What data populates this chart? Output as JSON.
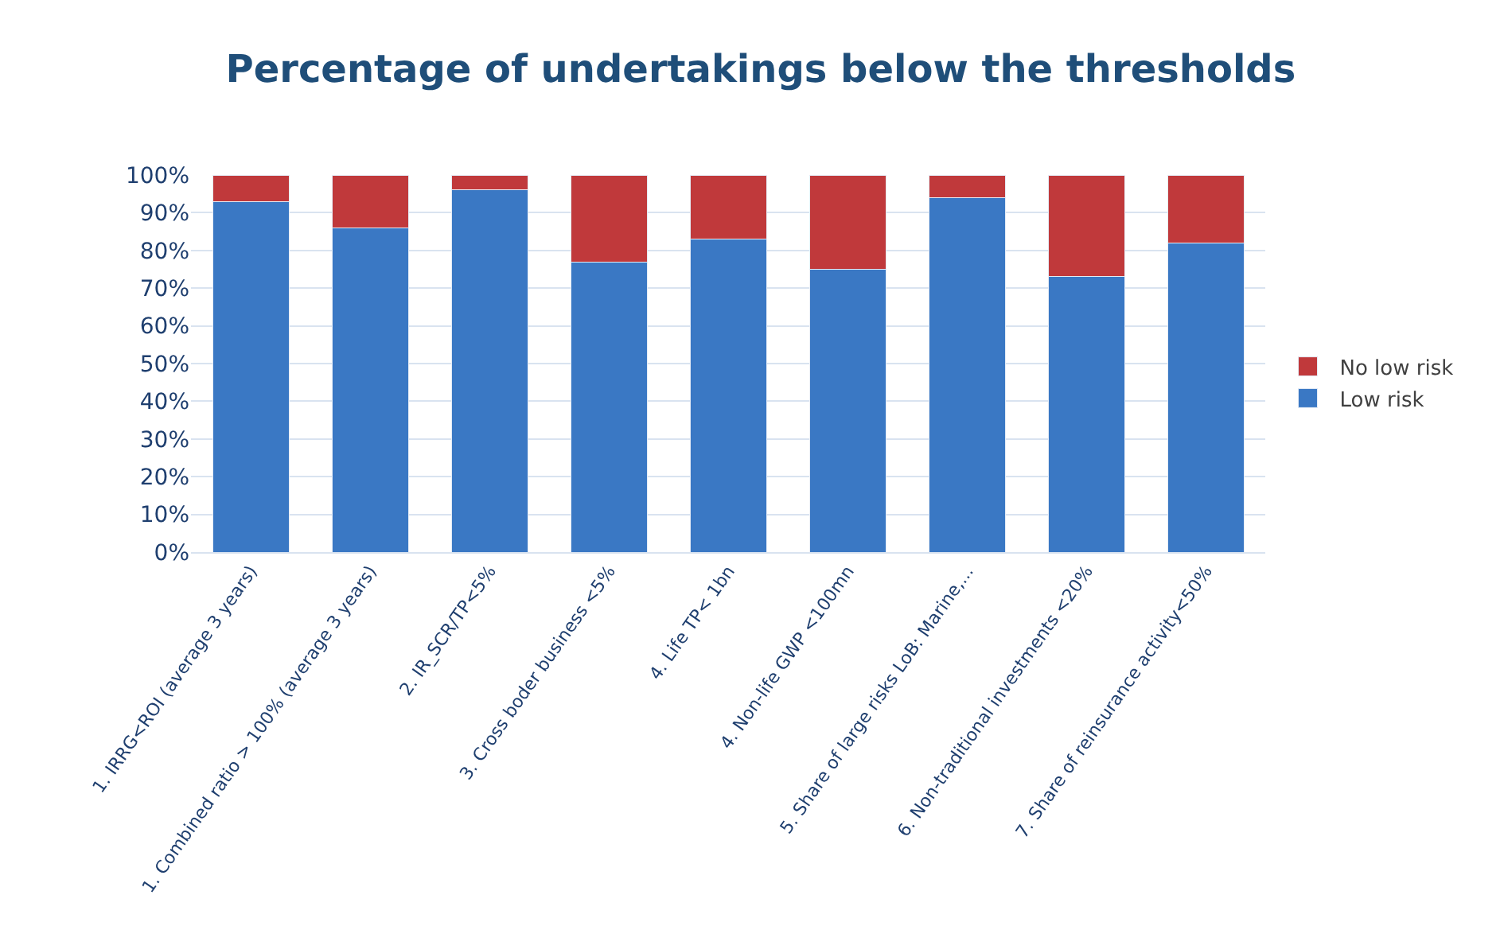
{
  "chart_data": {
    "type": "bar",
    "title": "Percentage of undertakings below the thresholds",
    "categories": [
      "1. IRRG<ROI (average 3 years)",
      "1. Combined ratio > 100% (average 3 years)",
      "2. IR_SCR/TP<5%",
      "3. Cross boder business <5%",
      "4. Life TP< 1bn",
      "4. Non-life GWP <100mn",
      "5. Share of large risks LoB: Marine,...",
      "6. Non-traditional investments <20%",
      "7. Share of reinsurance activity<50%"
    ],
    "series": [
      {
        "name": "Low risk",
        "color": "#3a78c4",
        "values": [
          93,
          86,
          96,
          77,
          83,
          75,
          94,
          73,
          82
        ]
      },
      {
        "name": "No low risk",
        "color": "#c0393b",
        "values": [
          7,
          14,
          4,
          23,
          17,
          25,
          6,
          27,
          18
        ]
      }
    ],
    "stacked": true,
    "ylim": [
      0,
      100
    ],
    "yticks": [
      {
        "value": 0,
        "label": "0%"
      },
      {
        "value": 10,
        "label": "10%"
      },
      {
        "value": 20,
        "label": "20%"
      },
      {
        "value": 30,
        "label": "30%"
      },
      {
        "value": 40,
        "label": "40%"
      },
      {
        "value": 50,
        "label": "50%"
      },
      {
        "value": 60,
        "label": "60%"
      },
      {
        "value": 70,
        "label": "70%"
      },
      {
        "value": 80,
        "label": "80%"
      },
      {
        "value": 90,
        "label": "90%"
      },
      {
        "value": 100,
        "label": "100%"
      }
    ],
    "grid": "y",
    "legend": "right"
  }
}
